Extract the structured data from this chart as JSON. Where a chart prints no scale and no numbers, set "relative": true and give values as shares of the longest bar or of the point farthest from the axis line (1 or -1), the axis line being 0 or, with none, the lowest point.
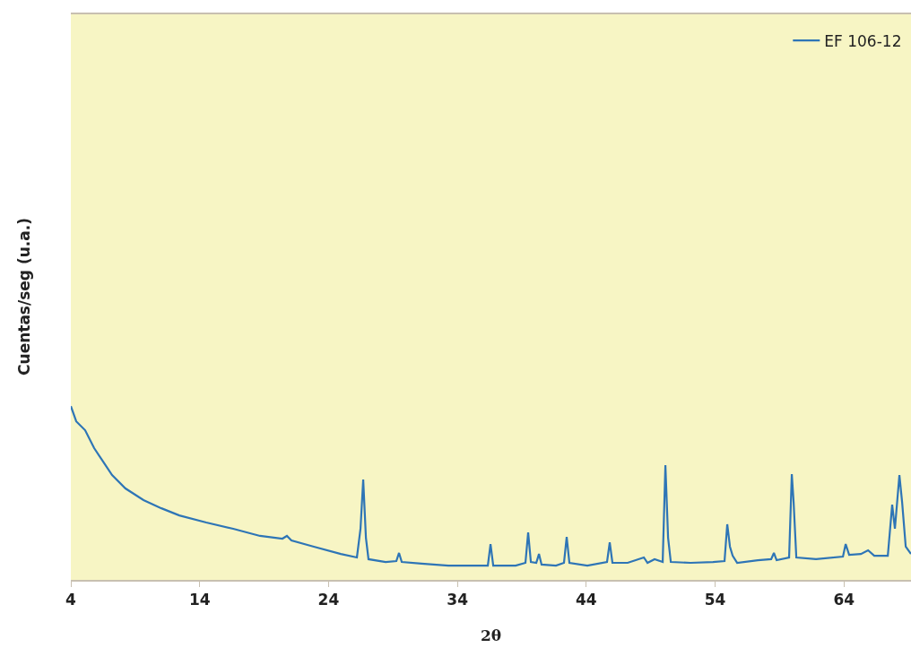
{
  "chart_data": {
    "type": "line",
    "relative": true,
    "xlabel": "2θ",
    "ylabel": "Cuentas/seg (u.a.)",
    "xlim": [
      4,
      69.2
    ],
    "xticks": [
      4,
      14,
      24,
      34,
      44,
      54,
      64
    ],
    "grid": false,
    "legend": "top right",
    "marker": "none",
    "line_style": "solid",
    "series": [
      {
        "name": "EF 106-12",
        "color": "#2e75b6",
        "x": [
          4.0,
          4.42,
          5.11,
          5.81,
          6.51,
          7.2,
          8.24,
          9.64,
          11.03,
          12.42,
          14.51,
          16.6,
          18.68,
          20.42,
          20.77,
          21.12,
          22.86,
          24.95,
          26.2,
          26.48,
          26.69,
          26.9,
          27.1,
          28.43,
          29.26,
          29.47,
          29.68,
          31.21,
          33.3,
          35.38,
          36.36,
          36.57,
          36.78,
          38.52,
          39.28,
          39.49,
          39.7,
          40.12,
          40.33,
          40.53,
          41.65,
          42.27,
          42.48,
          42.69,
          44.08,
          45.61,
          45.82,
          46.03,
          47.21,
          48.47,
          48.75,
          49.3,
          49.93,
          50.14,
          50.35,
          50.56,
          52.09,
          53.83,
          54.73,
          54.94,
          55.15,
          55.36,
          55.71,
          57.31,
          58.35,
          58.56,
          58.77,
          59.74,
          59.95,
          60.09,
          60.3,
          61.83,
          63.92,
          64.13,
          64.4,
          65.31,
          65.87,
          66.35,
          67.4,
          67.74,
          67.95,
          68.3,
          68.51,
          68.79,
          69.2
        ],
        "values": [
          1.0,
          0.912,
          0.861,
          0.758,
          0.68,
          0.603,
          0.526,
          0.459,
          0.412,
          0.371,
          0.33,
          0.294,
          0.253,
          0.237,
          0.253,
          0.227,
          0.191,
          0.149,
          0.129,
          0.294,
          0.577,
          0.242,
          0.119,
          0.103,
          0.108,
          0.155,
          0.103,
          0.093,
          0.082,
          0.082,
          0.082,
          0.206,
          0.082,
          0.082,
          0.098,
          0.273,
          0.103,
          0.098,
          0.149,
          0.088,
          0.082,
          0.098,
          0.247,
          0.098,
          0.082,
          0.103,
          0.216,
          0.098,
          0.098,
          0.129,
          0.098,
          0.119,
          0.103,
          0.66,
          0.242,
          0.103,
          0.098,
          0.103,
          0.108,
          0.32,
          0.191,
          0.139,
          0.098,
          0.113,
          0.119,
          0.155,
          0.113,
          0.129,
          0.608,
          0.448,
          0.129,
          0.119,
          0.134,
          0.206,
          0.144,
          0.149,
          0.17,
          0.139,
          0.139,
          0.433,
          0.294,
          0.603,
          0.448,
          0.191,
          0.149
        ]
      }
    ]
  }
}
